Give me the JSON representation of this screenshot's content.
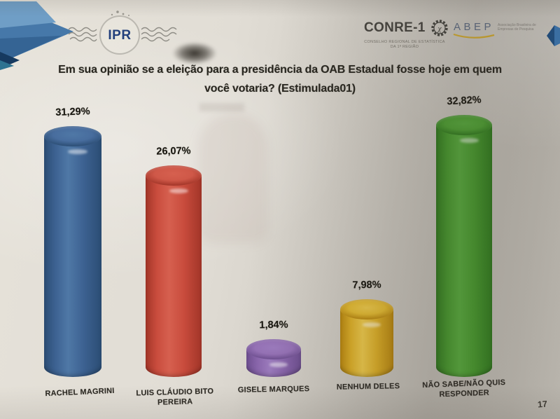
{
  "slide": {
    "title_line1": "Em sua opinião se a eleição para a presidência da OAB Estadual fosse hoje em quem",
    "title_line2": "você votaria? (Estimulada01)",
    "page_number": "17"
  },
  "logos": {
    "ipr": {
      "text": "IPR"
    },
    "conre": {
      "name": "CONRE-1",
      "symbol": "χ",
      "subtext": "CONSELHO REGIONAL DE ESTATÍSTICA DA 1ª REGIÃO"
    },
    "abep": {
      "name": "ABEP",
      "subtext": "Associação Brasileira de Empresas de Pesquisa"
    }
  },
  "chart_data": {
    "type": "bar",
    "style": "3d-cylinder",
    "title": "Em sua opinião se a eleição para a presidência da OAB Estadual fosse hoje em quem você votaria? (Estimulada01)",
    "categories": [
      "RACHEL MAGRINI",
      "LUIS CLÁUDIO BITO PEREIRA",
      "GISELE MARQUES",
      "NENHUM DELES",
      "NÃO SABE/NÃO QUIS RESPONDER"
    ],
    "values": [
      31.29,
      26.07,
      1.84,
      7.98,
      32.82
    ],
    "value_labels": [
      "31,29%",
      "26,07%",
      "1,84%",
      "7,98%",
      "32,82%"
    ],
    "colors": [
      {
        "dark": "#2b4d74",
        "main": "#3d6292",
        "light": "#4f78a6",
        "cap": "#486d9e"
      },
      {
        "dark": "#a23528",
        "main": "#c94c3d",
        "light": "#d6604f",
        "cap": "#cf5848"
      },
      {
        "dark": "#6d4e90",
        "main": "#8a66ad",
        "light": "#9d7cc0",
        "cap": "#9672b7"
      },
      {
        "dark": "#b8860e",
        "main": "#dcae26",
        "light": "#ecc84a",
        "cap": "#e2b930"
      },
      {
        "dark": "#2f7a1d",
        "main": "#46992c",
        "light": "#56ab3c",
        "cap": "#4da032"
      }
    ],
    "xlabel": "",
    "ylabel": "",
    "ylim": [
      0,
      35
    ],
    "grid": false,
    "legend": false
  }
}
